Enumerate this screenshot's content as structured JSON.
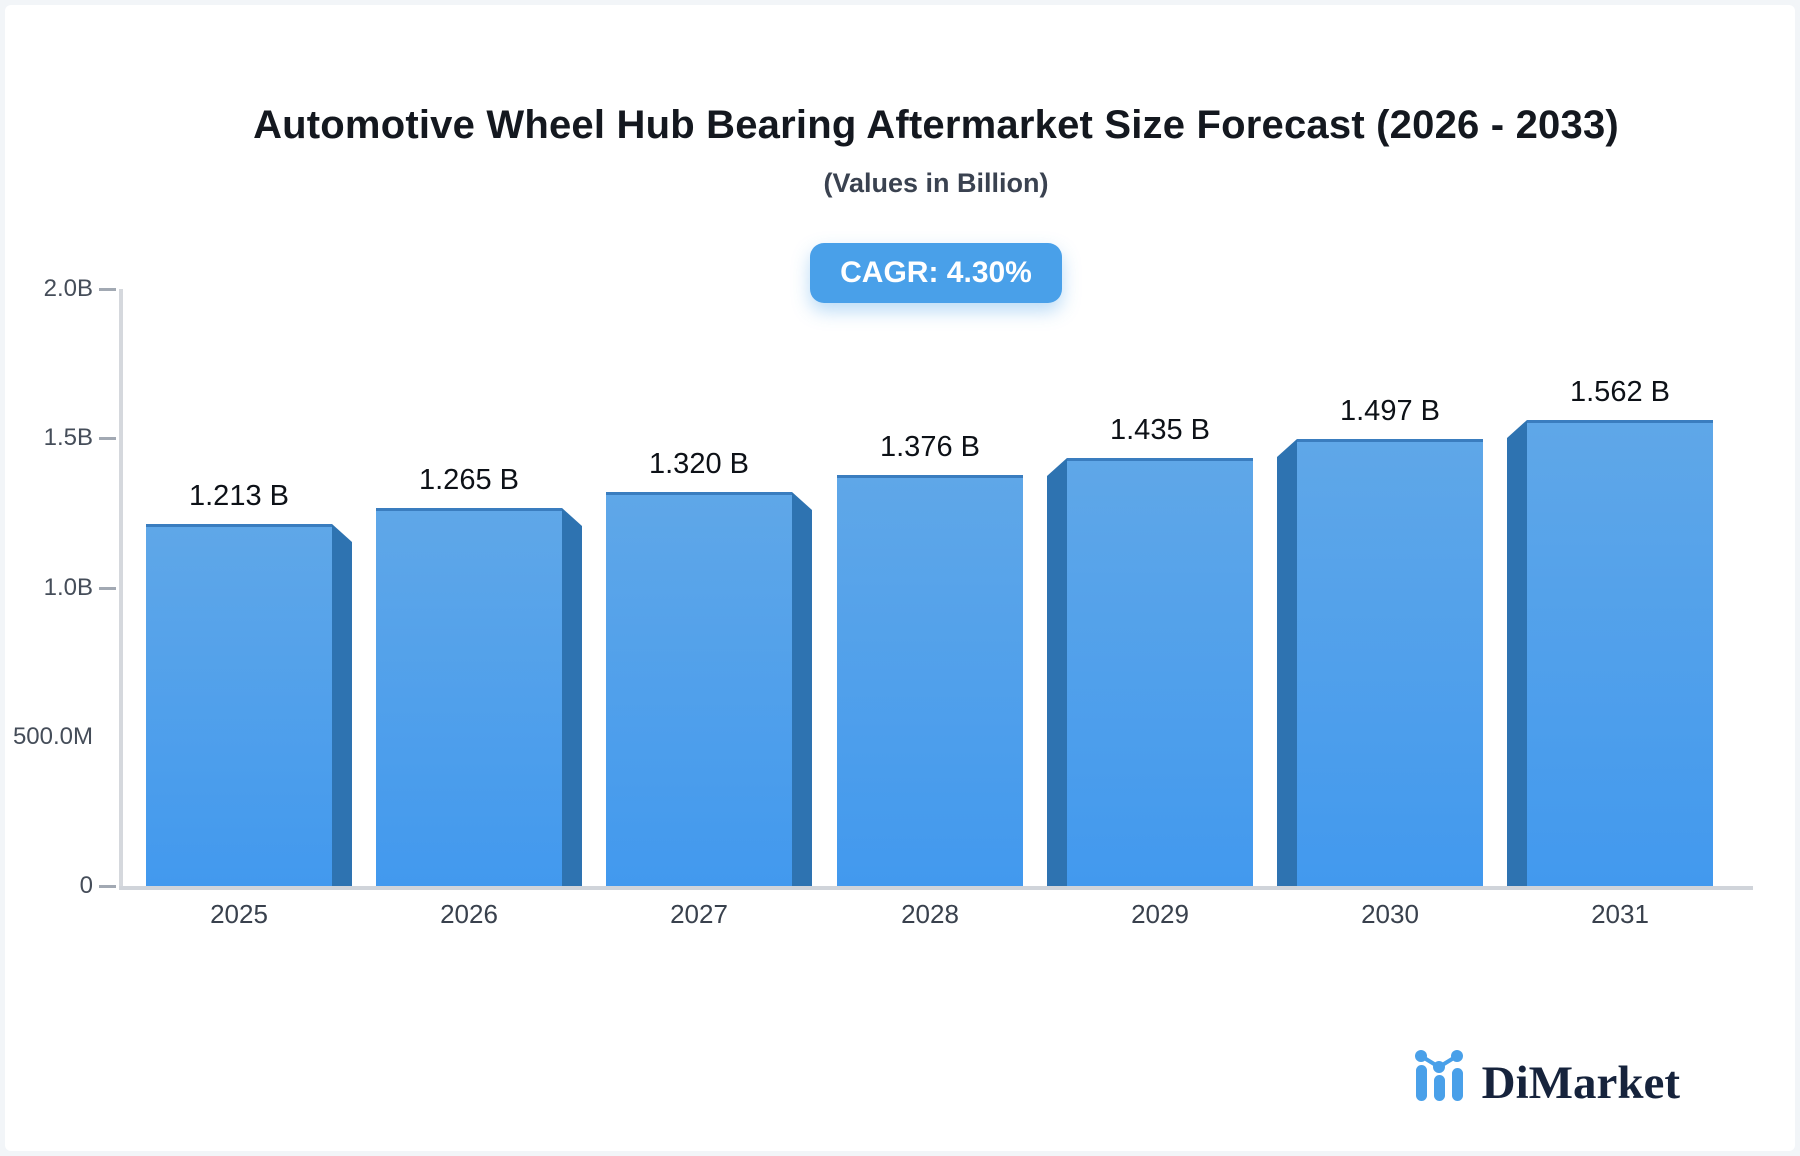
{
  "header": {
    "title": "Automotive Wheel Hub Bearing Aftermarket Size Forecast (2026 - 2033)",
    "subtitle": "(Values in Billion)",
    "cagr_badge": {
      "label": "CAGR: 4.30%",
      "color": "#49a0e9"
    }
  },
  "chart_data": {
    "type": "bar",
    "title": "Automotive Wheel Hub Bearing Aftermarket Size Forecast (2026 - 2033)",
    "subtitle": "(Values in Billion)",
    "categories": [
      "2025",
      "2026",
      "2027",
      "2028",
      "2029",
      "2030",
      "2031"
    ],
    "values": [
      1.213,
      1.265,
      1.32,
      1.376,
      1.435,
      1.497,
      1.562
    ],
    "value_labels": [
      "1.213 B",
      "1.265 B",
      "1.320 B",
      "1.376 B",
      "1.435 B",
      "1.497 B",
      "1.562 B"
    ],
    "series_unit": "Billion",
    "xlabel": "",
    "ylabel": "",
    "ylim": [
      0,
      2.0
    ],
    "grid": false,
    "legend_position": "none",
    "y_ticks": [
      {
        "label": "2.0B",
        "value": 2.0,
        "has_tick": true
      },
      {
        "label": "1.5B",
        "value": 1.5,
        "has_tick": true
      },
      {
        "label": "1.0B",
        "value": 1.0,
        "has_tick": true
      },
      {
        "label": "500.0M",
        "value": 0.5,
        "has_tick": false
      },
      {
        "label": "0",
        "value": 0.0,
        "has_tick": true
      }
    ],
    "bar_3d_sides": [
      "right",
      "right",
      "right",
      "none",
      "left",
      "left",
      "left"
    ],
    "colors": {
      "bar_gradient_top": "#5fa7e8",
      "bar_gradient_bottom": "#4299ee",
      "bar_side_face": "#2e73b1",
      "bar_top_edge": "#3a7dbf",
      "axis_line": "#d5d8dd"
    }
  },
  "logo": {
    "text": "DiMarket",
    "icon": "bar-line-chart-icon",
    "accent": "#49a0e9"
  }
}
